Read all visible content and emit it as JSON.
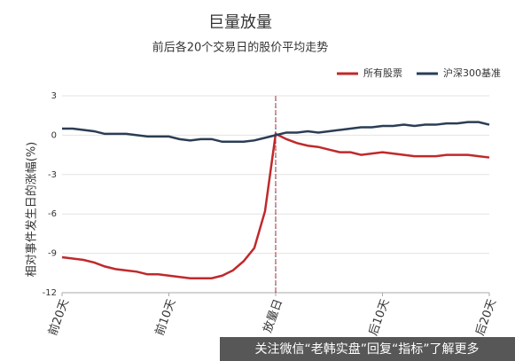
{
  "chart_data": {
    "type": "line",
    "title": "巨量放量",
    "subtitle": "前后各20个交易日的股价平均走势",
    "y_label": "相对事件发生日的涨幅(%)",
    "categories": [
      "前20天",
      null,
      null,
      null,
      null,
      null,
      null,
      null,
      null,
      null,
      "前10天",
      null,
      null,
      null,
      null,
      null,
      null,
      null,
      null,
      null,
      "放量日",
      null,
      null,
      null,
      null,
      null,
      null,
      null,
      null,
      null,
      "后10天",
      null,
      null,
      null,
      null,
      null,
      null,
      null,
      null,
      null,
      "后20天"
    ],
    "series": [
      {
        "name": "所有股票",
        "color": "#c0292b",
        "values": [
          -9.3,
          -9.4,
          -9.5,
          -9.7,
          -10.0,
          -10.2,
          -10.3,
          -10.4,
          -10.6,
          -10.6,
          -10.7,
          -10.8,
          -10.9,
          -10.9,
          -10.9,
          -10.7,
          -10.3,
          -9.6,
          -8.6,
          -5.8,
          0.1,
          -0.3,
          -0.6,
          -0.8,
          -0.9,
          -1.1,
          -1.3,
          -1.3,
          -1.5,
          -1.4,
          -1.3,
          -1.4,
          -1.5,
          -1.6,
          -1.6,
          -1.6,
          -1.5,
          -1.5,
          -1.5,
          -1.6,
          -1.7
        ]
      },
      {
        "name": "沪深300基准",
        "color": "#2b3d55",
        "values": [
          0.5,
          0.5,
          0.4,
          0.3,
          0.1,
          0.1,
          0.1,
          0,
          -0.1,
          -0.1,
          -0.1,
          -0.3,
          -0.4,
          -0.3,
          -0.3,
          -0.5,
          -0.5,
          -0.5,
          -0.4,
          -0.2,
          0,
          0.2,
          0.2,
          0.3,
          0.2,
          0.3,
          0.4,
          0.5,
          0.6,
          0.6,
          0.7,
          0.7,
          0.8,
          0.7,
          0.8,
          0.8,
          0.9,
          0.9,
          1.0,
          1.0,
          0.8
        ]
      }
    ],
    "ylim": [
      -12,
      3
    ],
    "yticks": [
      3,
      0,
      -3,
      -6,
      -9,
      -12
    ],
    "grid": true,
    "legend": "top-right",
    "watermark": "关注微信“老韩实盘”回复“指标”了解更多"
  }
}
